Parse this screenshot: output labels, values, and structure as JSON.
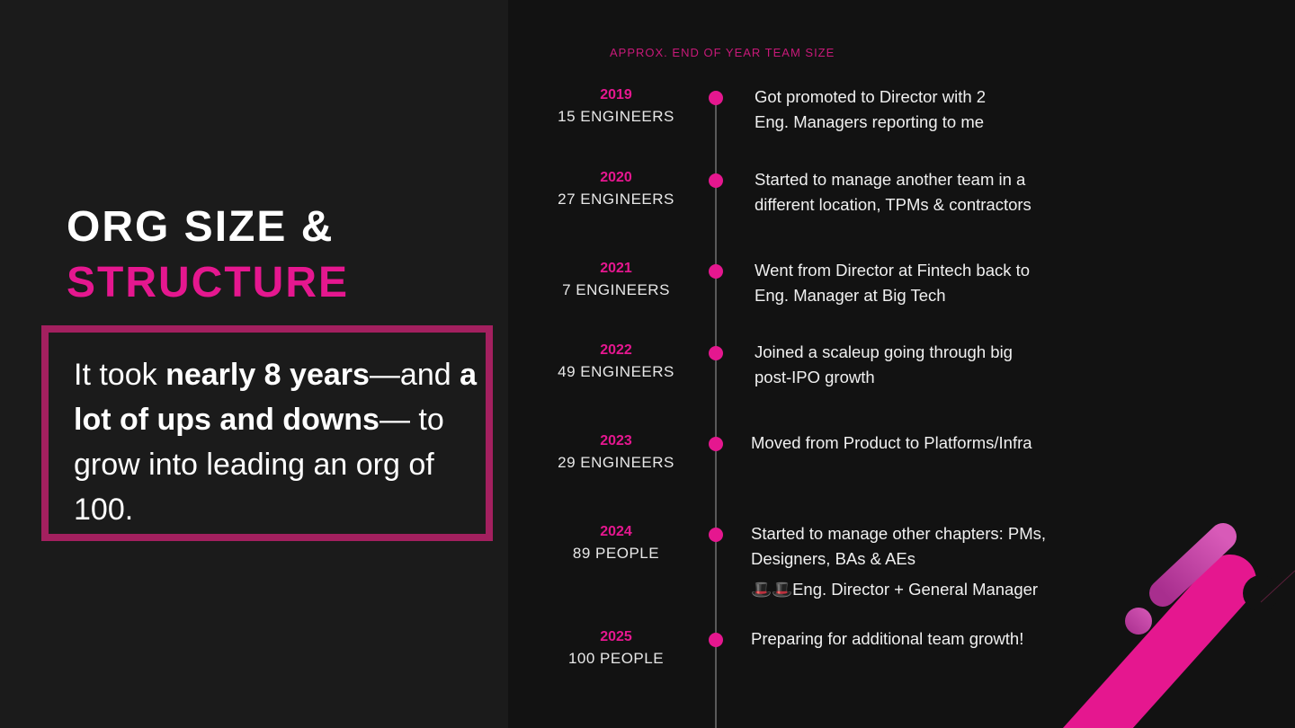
{
  "title": {
    "line1": "ORG SIZE &",
    "line2": "STRUCTURE"
  },
  "summary": {
    "part1": "It took ",
    "bold1": "nearly 8 years",
    "part2": "—and ",
    "bold2": "a lot of ups and downs",
    "part3": "— to grow into leading an org of 100."
  },
  "timeline": {
    "header": "APPROX. END OF YEAR TEAM SIZE",
    "items": [
      {
        "year": "2019",
        "size": "15 ENGINEERS",
        "desc": "Got promoted to Director with 2 Eng. Managers reporting to me"
      },
      {
        "year": "2020",
        "size": "27 ENGINEERS",
        "desc": "Started to manage another team in a different location, TPMs & contractors"
      },
      {
        "year": "2021",
        "size": "7 ENGINEERS",
        "desc": "Went from Director at Fintech back to Eng. Manager at Big Tech"
      },
      {
        "year": "2022",
        "size": "49 ENGINEERS",
        "desc": "Joined a scaleup going through big post-IPO growth"
      },
      {
        "year": "2023",
        "size": "29 ENGINEERS",
        "desc": "Moved from Product to Platforms/Infra"
      },
      {
        "year": "2024",
        "size": "89 PEOPLE",
        "desc": "Started to manage other chapters: PMs, Designers, BAs & AEs",
        "extra": "🎩🎩Eng. Director + General Manager"
      },
      {
        "year": "2025",
        "size": "100 PEOPLE",
        "desc": "Preparing for additional team growth!"
      }
    ]
  },
  "colors": {
    "accent": "#e5178f",
    "box_border": "#a3205f",
    "purple": "#b0369b",
    "background": "#121212"
  }
}
